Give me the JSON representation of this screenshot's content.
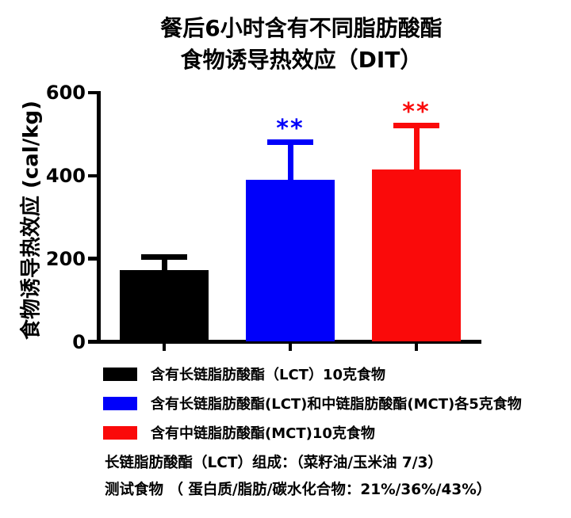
{
  "title": {
    "line1": "餐后6小时含有不同脂肪酸酯",
    "line2": "食物诱导热效应（DIT）"
  },
  "chart_data": {
    "type": "bar",
    "title": "餐后6小时含有不同脂肪酸酯 食物诱导热效应（DIT）",
    "xlabel": "",
    "ylabel": "食物诱导热效应 (cal/kg)",
    "ylim": [
      0,
      600
    ],
    "yticks": [
      0,
      200,
      400,
      600
    ],
    "grid": false,
    "legend_position": "bottom",
    "axis_color": "#000000",
    "bars": [
      {
        "label": "含有长链脂肪酸酯（LCT）10克食物",
        "value": 172,
        "error_upper": 38,
        "significance": "",
        "color": "#000000"
      },
      {
        "label": "含有长链脂肪酸酯(LCT)和中链脂肪酸酯(MCT)各5克食物",
        "value": 390,
        "error_upper": 98,
        "significance": "**",
        "color": "#0000fa"
      },
      {
        "label": "含有中链脂肪酸酯(MCT)10克食物",
        "value": 415,
        "error_upper": 112,
        "significance": "**",
        "color": "#fa0a0a"
      }
    ]
  },
  "footnotes": [
    "长链脂肪酸酯（LCT）组成：（菜籽油/玉米油 7/3）",
    "测试食物 （ 蛋白质/脂肪/碳水化合物：21%/36%/43%）"
  ]
}
